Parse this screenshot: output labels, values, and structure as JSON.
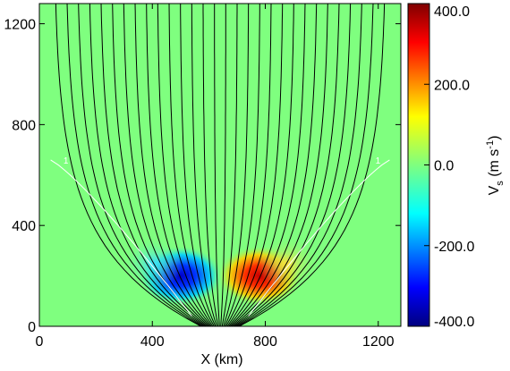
{
  "chart_data": {
    "type": "heatmap",
    "xlabel": "X (km)",
    "ylabel": "",
    "xlim": [
      0,
      1280
    ],
    "ylim": [
      0,
      1280
    ],
    "xticks": [
      "0",
      "400",
      "800",
      "1200"
    ],
    "yticks": [
      "0",
      "400",
      "800",
      "1200"
    ],
    "colorbar": {
      "label": "V",
      "label_subscript": "s",
      "units": "(m s",
      "units_superscript": "-1",
      "units_close": ")",
      "range": [
        -400,
        400
      ],
      "ticks": [
        "400.0",
        "200.0",
        "0.0",
        "-200.0",
        "-400.0"
      ],
      "colormap": "rainbow (blue-cyan-green-yellow-red)"
    },
    "contour_label": "1",
    "field_lines": {
      "color": "#000000",
      "base_center_km": 640,
      "count": 30
    },
    "velocity_blobs": [
      {
        "x": 500,
        "y": 200,
        "value": -400
      },
      {
        "x": 780,
        "y": 200,
        "value": 400
      },
      {
        "x": 400,
        "y": 250,
        "value": -150
      },
      {
        "x": 880,
        "y": 250,
        "value": 150
      }
    ],
    "background_value": 0
  }
}
